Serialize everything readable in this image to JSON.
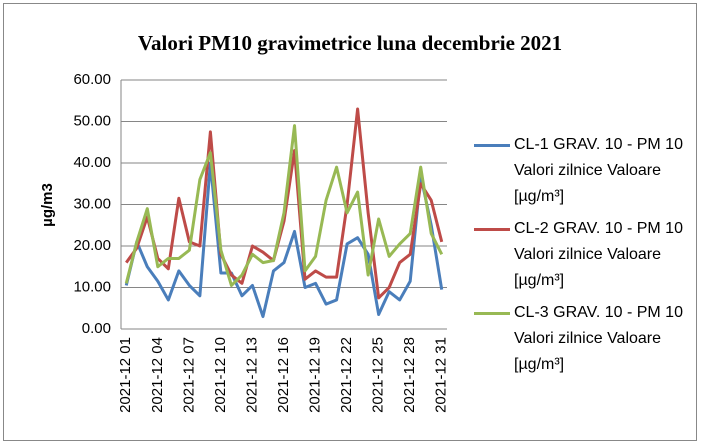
{
  "chart_data": {
    "type": "line",
    "title": "Valori PM10 gravimetrice luna decembrie 2021",
    "y_label": "µg/m3",
    "categories": [
      "2021-12 01",
      null,
      null,
      "2021-12 04",
      null,
      null,
      "2021-12 07",
      null,
      null,
      "2021-12 10",
      null,
      null,
      "2021-12 13",
      null,
      null,
      "2021-12 16",
      null,
      null,
      "2021-12 19",
      null,
      null,
      "2021-12 22",
      null,
      null,
      "2021-12 25",
      null,
      null,
      "2021-12 28",
      null,
      null,
      "2021-12 31"
    ],
    "series": [
      {
        "name": "CL-1 GRAV. 10 - PM 10 Valori zilnice Valoare [µg/m³]",
        "color": "#4a7ebb",
        "values": [
          10.5,
          21,
          15,
          11.5,
          7,
          14,
          10.5,
          8,
          40,
          13.5,
          13.5,
          8,
          10.5,
          3,
          14,
          16,
          23.5,
          10,
          11,
          6,
          7,
          20.5,
          22,
          18,
          3.5,
          9,
          7,
          11.5,
          37,
          25,
          9.5
        ]
      },
      {
        "name": "CL-2 GRAV. 10 - PM 10 Valori zilnice Valoare [µg/m³]",
        "color": "#be4b48",
        "values": [
          16,
          19.5,
          27,
          17,
          14.5,
          31.5,
          21,
          20,
          47.5,
          18,
          13,
          11,
          20,
          18.5,
          16.5,
          26,
          43,
          12,
          14,
          12.5,
          12.5,
          30,
          53,
          28,
          7.5,
          10,
          16,
          18,
          35,
          31,
          21
        ]
      },
      {
        "name": "CL-3 GRAV. 10 - PM 10 Valori zilnice Valoare [µg/m³]",
        "color": "#98b954",
        "values": [
          11,
          21,
          29,
          15,
          17,
          17,
          19,
          36,
          42.5,
          19,
          10.5,
          13,
          18,
          16,
          16.5,
          28,
          49,
          14,
          17.5,
          31,
          39,
          28,
          33,
          13,
          26.5,
          17.5,
          20.5,
          23,
          39,
          23,
          18
        ]
      }
    ],
    "ylim": [
      0,
      60
    ],
    "yticks": [
      {
        "value": 0,
        "label": "0.00"
      },
      {
        "value": 10,
        "label": "10.00"
      },
      {
        "value": 20,
        "label": "20.00"
      },
      {
        "value": 30,
        "label": "30.00"
      },
      {
        "value": 40,
        "label": "40.00"
      },
      {
        "value": 50,
        "label": "50.00"
      },
      {
        "value": 60,
        "label": "60.00"
      }
    ],
    "grid": true,
    "legend": "right"
  }
}
